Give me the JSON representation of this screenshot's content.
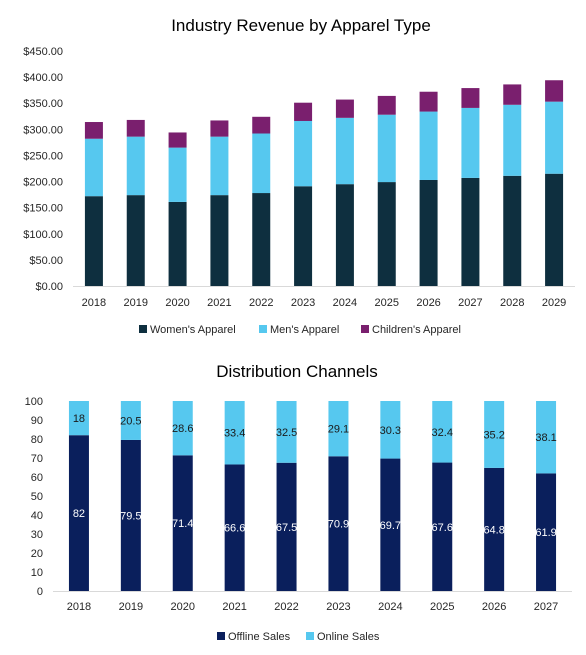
{
  "chart_data": [
    {
      "type": "bar",
      "stacked": true,
      "title": "Industry Revenue by Apparel Type",
      "categories": [
        "2018",
        "2019",
        "2020",
        "2021",
        "2022",
        "2023",
        "2024",
        "2025",
        "2026",
        "2027",
        "2028",
        "2029"
      ],
      "series": [
        {
          "name": "Women's Apparel",
          "color": "#0e2f3f",
          "values": [
            172,
            174,
            161,
            174,
            178,
            191,
            195,
            199,
            203,
            207,
            211,
            215
          ]
        },
        {
          "name": "Men's Apparel",
          "color": "#56c8ef",
          "values": [
            110,
            112,
            104,
            112,
            114,
            125,
            127,
            129,
            131,
            134,
            136,
            138
          ]
        },
        {
          "name": "Children's Apparel",
          "color": "#7a1f6e",
          "values": [
            32,
            32,
            29,
            31,
            32,
            35,
            35,
            36,
            38,
            38,
            39,
            41
          ]
        }
      ],
      "yticks": [
        "$0.00",
        "$50.00",
        "$100.00",
        "$150.00",
        "$200.00",
        "$250.00",
        "$300.00",
        "$350.00",
        "$400.00",
        "$450.00"
      ],
      "ylim": [
        0,
        450
      ],
      "legend_position": "bottom",
      "grid": false
    },
    {
      "type": "bar",
      "stacked": true,
      "title": "Distribution Channels",
      "categories": [
        "2018",
        "2019",
        "2020",
        "2021",
        "2022",
        "2023",
        "2024",
        "2025",
        "2026",
        "2027"
      ],
      "series": [
        {
          "name": "Offline Sales",
          "color": "#0a1f5c",
          "label_color": "#ffffff",
          "values": [
            82,
            79.5,
            71.4,
            66.6,
            67.5,
            70.9,
            69.7,
            67.6,
            64.8,
            61.9
          ]
        },
        {
          "name": "Online Sales",
          "color": "#56c8ef",
          "label_color": "#1a1a1a",
          "values": [
            18,
            20.5,
            28.6,
            33.4,
            32.5,
            29.1,
            30.3,
            32.4,
            35.2,
            38.1
          ]
        }
      ],
      "yticks": [
        "0",
        "10",
        "20",
        "30",
        "40",
        "50",
        "60",
        "70",
        "80",
        "90",
        "100"
      ],
      "ylim": [
        0,
        100
      ],
      "legend_position": "bottom",
      "grid": false
    }
  ]
}
